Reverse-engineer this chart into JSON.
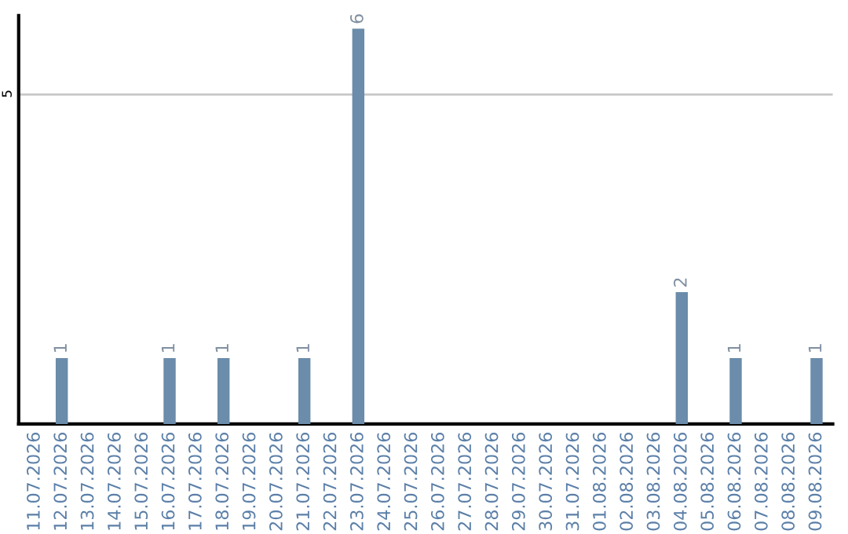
{
  "chart_data": {
    "type": "bar",
    "categories": [
      "11.07.2026",
      "12.07.2026",
      "13.07.2026",
      "14.07.2026",
      "15.07.2026",
      "16.07.2026",
      "17.07.2026",
      "18.07.2026",
      "19.07.2026",
      "20.07.2026",
      "21.07.2026",
      "22.07.2026",
      "23.07.2026",
      "24.07.2026",
      "25.07.2026",
      "26.07.2026",
      "27.07.2026",
      "28.07.2026",
      "29.07.2026",
      "30.07.2026",
      "31.07.2026",
      "01.08.2026",
      "02.08.2026",
      "03.08.2026",
      "04.08.2026",
      "05.08.2026",
      "06.08.2026",
      "07.08.2026",
      "08.08.2026",
      "09.08.2026"
    ],
    "values": [
      0,
      1,
      0,
      0,
      0,
      1,
      0,
      1,
      0,
      0,
      1,
      0,
      6,
      0,
      0,
      0,
      0,
      0,
      0,
      0,
      0,
      0,
      0,
      0,
      2,
      0,
      1,
      0,
      0,
      1
    ],
    "value_labels": [
      null,
      "1",
      null,
      null,
      null,
      "1",
      null,
      "1",
      null,
      null,
      "1",
      null,
      "6",
      null,
      null,
      null,
      null,
      null,
      null,
      null,
      null,
      null,
      null,
      null,
      "2",
      null,
      "1",
      null,
      null,
      "1"
    ],
    "color": "#6b8caa",
    "ylim": [
      0,
      6.2
    ],
    "yticks": [
      5
    ],
    "grid": "y"
  }
}
